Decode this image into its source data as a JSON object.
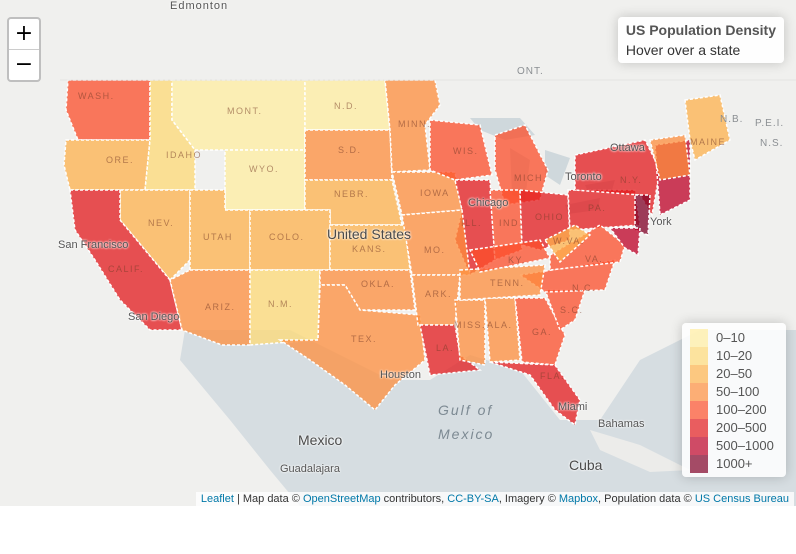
{
  "map": {
    "zoom_in_label": "+",
    "zoom_out_label": "−",
    "info": {
      "title": "US Population Density",
      "hint": "Hover over a state"
    },
    "legend": [
      {
        "label": "0–10",
        "color": "#FFEDA0"
      },
      {
        "label": "10–20",
        "color": "#FED976"
      },
      {
        "label": "20–50",
        "color": "#FEB24C"
      },
      {
        "label": "50–100",
        "color": "#FD8D3C"
      },
      {
        "label": "100–200",
        "color": "#FC4E2A"
      },
      {
        "label": "200–500",
        "color": "#E31A1C"
      },
      {
        "label": "500–1000",
        "color": "#BD0026"
      },
      {
        "label": "1000+",
        "color": "#800026"
      }
    ],
    "basemap_labels": {
      "edmonton": "Edmonton",
      "ont": "ONT.",
      "nb": "N.B.",
      "pei": "P.E.I.",
      "ns": "N.S.",
      "ottawa": "Ottawa",
      "toronto": "Toronto",
      "chicago": "Chicago",
      "new_york": "York",
      "united_states": "United States",
      "san_francisco": "San Francisco",
      "san_diego": "San Diego",
      "houston": "Houston",
      "miami": "Miami",
      "bahamas": "Bahamas",
      "gulf1": "Gulf of",
      "gulf2": "Mexico",
      "mexico": "Mexico",
      "guadalajara": "Guadalajara",
      "cuba": "Cuba"
    },
    "state_labels": {
      "wash": "WASH.",
      "ore": "ORE.",
      "idaho": "IDAHO",
      "mont": "MONT.",
      "wyo": "WYO.",
      "nd": "N.D.",
      "sd": "S.D.",
      "nebr": "NEBR.",
      "minn": "MINN.",
      "iowa": "IOWA",
      "wis": "WIS.",
      "mich": "MICH.",
      "ill": "ILL.",
      "ind": "IND.",
      "ohio": "OHIO",
      "pa": "PA.",
      "ny": "N.Y.",
      "nev": "NEV.",
      "utah": "UTAH",
      "colo": "COLO.",
      "calif": "CALIF.",
      "ariz": "ARIZ.",
      "nm": "N.M.",
      "kans": "KANS.",
      "okla": "OKLA.",
      "tex": "TEX.",
      "mo": "MO.",
      "ark": "ARK.",
      "la": "LA.",
      "miss": "MISS.",
      "ala": "ALA.",
      "ga": "GA.",
      "fla": "FLA.",
      "sc": "S.C.",
      "nc": "N.C.",
      "tenn": "TENN.",
      "ky": "KY.",
      "va": "VA.",
      "wva": "W.VA.",
      "maine": "MAINE"
    },
    "attribution": {
      "leaflet": "Leaflet",
      "t1": " | Map data © ",
      "osm": "OpenStreetMap",
      "t2": " contributors, ",
      "ccbysa": "CC-BY-SA",
      "t3": ", Imagery © ",
      "mapbox": "Mapbox",
      "t4": ", Population data © ",
      "census": "US Census Bureau"
    }
  }
}
